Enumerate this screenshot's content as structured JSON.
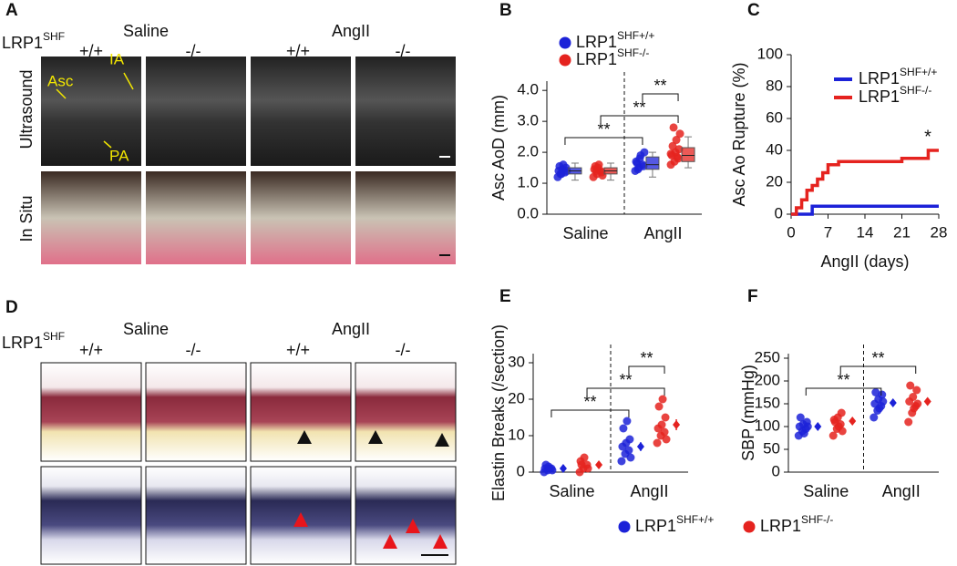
{
  "panel_labels": [
    "A",
    "B",
    "C",
    "D",
    "E",
    "F"
  ],
  "panel_a": {
    "group_label": "LRP1",
    "group_sup": "SHF",
    "conditions": [
      "Saline",
      "AngII"
    ],
    "genotypes": [
      "+/+",
      "-/-",
      "+/+",
      "-/-"
    ],
    "row_labels": [
      "Ultrasound",
      "In Situ"
    ],
    "annotations": [
      "Asc",
      "IA",
      "PA"
    ]
  },
  "panel_d": {
    "group_label": "LRP1",
    "group_sup": "SHF",
    "conditions": [
      "Saline",
      "AngII"
    ],
    "genotypes": [
      "+/+",
      "-/-",
      "+/+",
      "-/-"
    ]
  },
  "chart_data": [
    {
      "type": "box",
      "ylabel": "Asc AoD (mm)",
      "categories": [
        "Saline",
        "AngII"
      ],
      "ylim": [
        0,
        4.3
      ],
      "yticks": [
        {
          "value": 0,
          "label": "0.0"
        },
        {
          "value": 1,
          "label": "1.0"
        },
        {
          "value": 2,
          "label": "2.0"
        },
        {
          "value": 3,
          "label": "3.0"
        },
        {
          "value": 4,
          "label": "4.0"
        }
      ],
      "legend": "top",
      "series": [
        {
          "name": "LRP1",
          "name_superscript": "SHF+/+",
          "color": "#1c22d8",
          "points": [
            [
              1.2,
              1.3,
              1.35,
              1.4,
              1.45,
              1.5,
              1.55,
              1.6,
              1.4,
              1.3
            ],
            [
              1.4,
              1.5,
              1.6,
              1.7,
              1.8,
              1.55,
              1.65,
              1.9,
              2.0,
              1.45
            ]
          ],
          "box": [
            {
              "min": 1.1,
              "q1": 1.3,
              "median": 1.4,
              "q3": 1.5,
              "max": 1.65
            },
            {
              "min": 1.2,
              "q1": 1.45,
              "median": 1.6,
              "q3": 1.85,
              "max": 2.0
            }
          ]
        },
        {
          "name": "LRP1",
          "name_superscript": "SHF-/-",
          "color": "#e5231f",
          "points": [
            [
              1.2,
              1.3,
              1.4,
              1.45,
              1.5,
              1.35,
              1.55,
              1.6,
              1.25,
              1.4
            ],
            [
              1.6,
              1.7,
              1.8,
              1.9,
              2.0,
              2.1,
              2.2,
              2.4,
              2.6,
              2.8,
              1.85,
              1.95
            ]
          ],
          "box": [
            {
              "min": 1.1,
              "q1": 1.3,
              "median": 1.4,
              "q3": 1.5,
              "max": 1.65
            },
            {
              "min": 1.5,
              "q1": 1.7,
              "median": 1.9,
              "q3": 2.15,
              "max": 2.5
            }
          ]
        }
      ],
      "significance": [
        {
          "label": "**",
          "groups": [
            [
              0,
              0
            ],
            [
              1,
              0
            ]
          ]
        },
        {
          "label": "**",
          "groups": [
            [
              0,
              1
            ],
            [
              1,
              1
            ]
          ]
        },
        {
          "label": "**",
          "groups": [
            [
              1,
              0
            ],
            [
              1,
              1
            ]
          ]
        }
      ]
    },
    {
      "type": "line",
      "ylabel": "Asc Ao Rupture (%)",
      "xlabel": "AngII (days)",
      "xlim": [
        0,
        28
      ],
      "xticks": [
        0,
        7,
        14,
        21,
        28
      ],
      "ylim": [
        0,
        100
      ],
      "yticks": [
        0,
        20,
        40,
        60,
        80,
        100
      ],
      "legend": "upper right",
      "step": true,
      "annotation": "*",
      "series": [
        {
          "name": "LRP1",
          "name_superscript": "SHF+/+",
          "color": "#1c22d8",
          "x": [
            0,
            3,
            4,
            28
          ],
          "values": [
            0,
            0,
            5,
            5
          ]
        },
        {
          "name": "LRP1",
          "name_superscript": "SHF-/-",
          "color": "#e5231f",
          "x": [
            0,
            1,
            2,
            3,
            4,
            5,
            6,
            7,
            9,
            21,
            26,
            28
          ],
          "values": [
            0,
            4,
            9,
            15,
            18,
            22,
            26,
            31,
            33,
            35,
            40,
            40
          ]
        }
      ]
    },
    {
      "type": "dot",
      "ylabel": "Elastin Breaks (/section)",
      "categories": [
        "Saline",
        "AngII"
      ],
      "ylim": [
        0,
        32.5
      ],
      "yticks": [
        0,
        10,
        20,
        30
      ],
      "legend": "bottom",
      "series": [
        {
          "name": "LRP1",
          "name_superscript": "SHF+/+",
          "color": "#1c22d8",
          "values": [
            1,
            7
          ],
          "errors": [
            0.3,
            1.2
          ],
          "points": [
            [
              0,
              0.5,
              1,
              1,
              1.5,
              0.5,
              2,
              1
            ],
            [
              3,
              5,
              6,
              7,
              8,
              9,
              12,
              14,
              4
            ]
          ]
        },
        {
          "name": "LRP1",
          "name_superscript": "SHF-/-",
          "color": "#e5231f",
          "values": [
            2,
            13
          ],
          "errors": [
            0.8,
            1.5
          ],
          "points": [
            [
              0,
              1,
              2,
              3,
              4,
              1,
              2
            ],
            [
              8,
              10,
              11,
              12,
              13,
              15,
              18,
              20,
              9
            ]
          ]
        }
      ],
      "significance": [
        {
          "label": "**",
          "groups": [
            [
              0,
              0
            ],
            [
              1,
              0
            ]
          ]
        },
        {
          "label": "**",
          "groups": [
            [
              0,
              1
            ],
            [
              1,
              1
            ]
          ]
        },
        {
          "label": "**",
          "groups": [
            [
              1,
              0
            ],
            [
              1,
              1
            ]
          ]
        }
      ]
    },
    {
      "type": "dot",
      "ylabel": "SBP (mmHg)",
      "categories": [
        "Saline",
        "AngII"
      ],
      "ylim": [
        0,
        260
      ],
      "yticks": [
        0,
        50,
        100,
        150,
        200,
        250
      ],
      "series": [
        {
          "color": "#1c22d8",
          "values": [
            100,
            152
          ],
          "errors": [
            3,
            4
          ],
          "points": [
            [
              80,
              90,
              95,
              100,
              105,
              110,
              120,
              85,
              100
            ],
            [
              120,
              135,
              145,
              150,
              160,
              170,
              175,
              140,
              155
            ]
          ]
        },
        {
          "color": "#e5231f",
          "values": [
            112,
            155
          ],
          "errors": [
            4,
            5
          ],
          "points": [
            [
              80,
              95,
              105,
              115,
              120,
              130,
              110,
              100,
              90
            ],
            [
              110,
              130,
              145,
              155,
              165,
              180,
              190,
              140,
              150
            ]
          ]
        }
      ],
      "significance": [
        {
          "label": "**",
          "groups": [
            [
              0,
              0
            ],
            [
              1,
              0
            ]
          ]
        },
        {
          "label": "**",
          "groups": [
            [
              0,
              1
            ],
            [
              1,
              1
            ]
          ]
        }
      ]
    }
  ]
}
